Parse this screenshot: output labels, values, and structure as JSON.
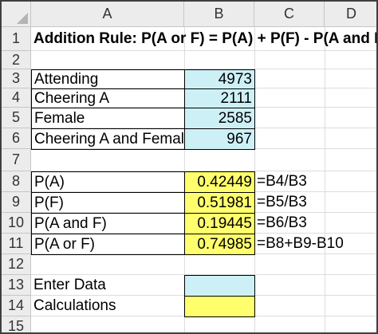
{
  "columns": [
    "A",
    "B",
    "C",
    "D"
  ],
  "rows": [
    "1",
    "2",
    "3",
    "4",
    "5",
    "6",
    "7",
    "8",
    "9",
    "10",
    "11",
    "12",
    "13",
    "14",
    "15"
  ],
  "title": "Addition Rule: P(A or F) = P(A) + P(F) - P(A and F)",
  "inputs": [
    {
      "label": "Attending",
      "value": "4973"
    },
    {
      "label": "Cheering A",
      "value": "2111"
    },
    {
      "label": "Female",
      "value": "2585"
    },
    {
      "label": "Cheering A and Female",
      "value": "967"
    }
  ],
  "calcs": [
    {
      "label": "P(A)",
      "value": "0.42449",
      "formula": "=B4/B3"
    },
    {
      "label": "P(F)",
      "value": "0.51981",
      "formula": "=B5/B3"
    },
    {
      "label": "P(A and F)",
      "value": "0.19445",
      "formula": "=B6/B3"
    },
    {
      "label": "P(A or F)",
      "value": "0.74985",
      "formula": "=B8+B9-B10"
    }
  ],
  "legend": {
    "enter_data": "Enter Data",
    "calculations": "Calculations"
  },
  "colors": {
    "input_fill": "#cdf0f7",
    "calc_fill": "#ffff6e",
    "header_bg": "#ececec"
  }
}
